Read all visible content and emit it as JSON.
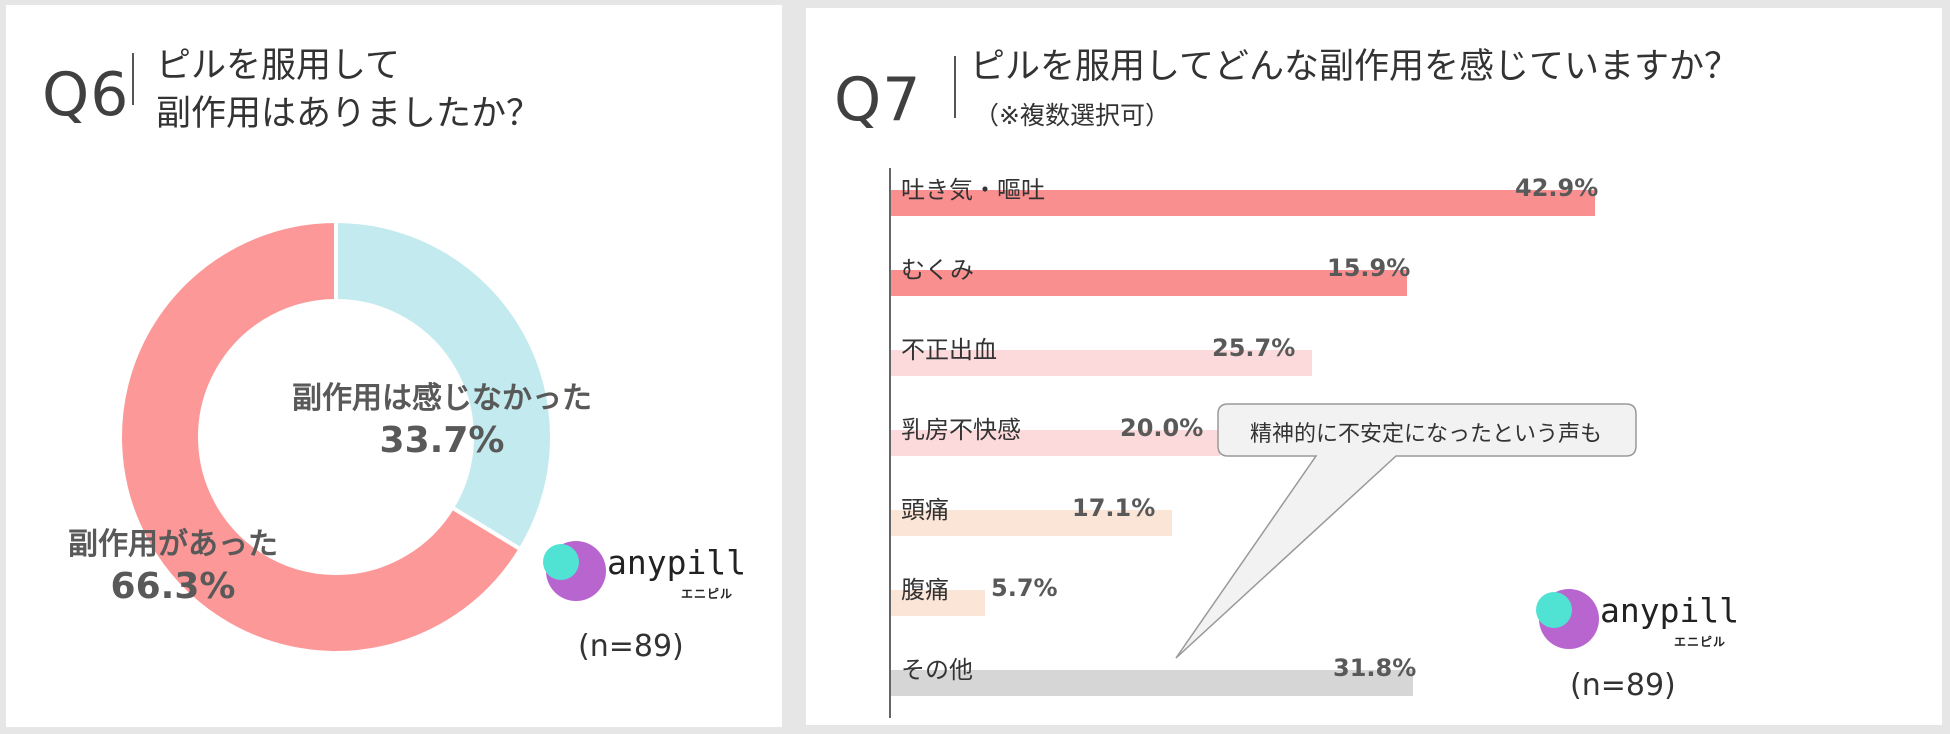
{
  "q6": {
    "number": "Q6",
    "title_line1": "ピルを服用して",
    "title_line2": "副作用はありましたか？",
    "n": "(n=89)"
  },
  "q7": {
    "number": "Q7",
    "title": "ピルを服用してどんな副作用を感じていますか？",
    "subtitle": "（※複数選択可）",
    "n": "(n=89)",
    "callout": "精神的に不安定になったという声も"
  },
  "logo": {
    "word": "anypill",
    "kana": "エニピル"
  },
  "colors": {
    "pink": "#fd9899",
    "light_blue": "#c2eaef",
    "bar_red": "#fa8f90",
    "bar_pink_light": "#fcdadb",
    "bar_peach": "#fbe5d6",
    "bar_gray": "#d6d6d6",
    "logo_teal": "#50e3d3",
    "logo_purple": "#b865d0"
  },
  "chart_data": [
    {
      "type": "pie",
      "style": "donut",
      "categories": [
        "副作用は感じなかった",
        "副作用があった"
      ],
      "values": [
        33.7,
        66.3
      ],
      "value_labels": [
        "33.7%",
        "66.3%"
      ],
      "colors": [
        "#c2eaef",
        "#fd9899"
      ]
    },
    {
      "type": "bar",
      "orientation": "horizontal",
      "categories": [
        "吐き気・嘔吐",
        "むくみ",
        "不正出血",
        "乳房不快感",
        "頭痛",
        "腹痛",
        "その他"
      ],
      "values": [
        42.9,
        15.9,
        25.7,
        20.0,
        17.1,
        5.7,
        31.8
      ],
      "value_labels": [
        "42.9%",
        "15.9%",
        "25.7%",
        "20.0%",
        "17.1%",
        "5.7%",
        "31.8%"
      ],
      "bar_fill_fraction": [
        1.0,
        0.733,
        0.598,
        0.467,
        0.399,
        0.133,
        0.741
      ],
      "colors": [
        "#fa8f90",
        "#fa8f90",
        "#fcdadb",
        "#fcdadb",
        "#fbe5d6",
        "#fbe5d6",
        "#d6d6d6"
      ]
    }
  ]
}
